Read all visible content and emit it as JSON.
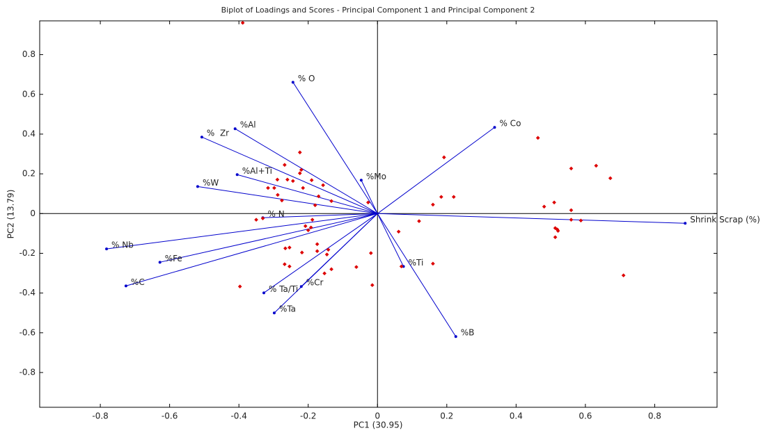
{
  "chart_data": {
    "type": "biplot",
    "title": "Biplot of Loadings and Scores - Principal Component 1 and Principal Component 2",
    "xlabel": "PC1 (30.95)",
    "ylabel": "PC2 (13.79)",
    "xlim": [
      -0.975,
      0.98
    ],
    "ylim": [
      -0.975,
      0.97
    ],
    "xticks": [
      -0.8,
      -0.6,
      -0.4,
      -0.2,
      0,
      0.2,
      0.4,
      0.6,
      0.8
    ],
    "yticks": [
      -0.8,
      -0.6,
      -0.4,
      -0.2,
      0,
      0.2,
      0.4,
      0.6,
      0.8
    ],
    "loadings": {
      "color": "#0000cc",
      "labels": [
        "% O",
        "% Co",
        "%Al",
        "%  Zr",
        "%Al+Ti",
        "%W",
        "%Mo",
        "% N",
        "Shrink Scrap (%)",
        "% Nb",
        "%Fe",
        "%C",
        "%Ti",
        "% Ta/Ti",
        "%Cr",
        "%Ta",
        "%B"
      ],
      "x": [
        -0.244,
        0.338,
        -0.411,
        -0.507,
        -0.405,
        -0.519,
        -0.047,
        -0.331,
        0.888,
        -0.782,
        -0.628,
        -0.726,
        0.075,
        -0.328,
        -0.22,
        -0.298,
        0.226
      ],
      "y": [
        0.661,
        0.434,
        0.427,
        0.385,
        0.196,
        0.136,
        0.168,
        -0.021,
        -0.049,
        -0.178,
        -0.245,
        -0.364,
        -0.266,
        -0.399,
        -0.367,
        -0.5,
        -0.619
      ]
    },
    "scores": {
      "color": "#dd0000",
      "x": [
        -0.389,
        -0.224,
        -0.22,
        -0.224,
        -0.268,
        -0.26,
        -0.289,
        -0.298,
        -0.244,
        -0.19,
        -0.215,
        -0.157,
        -0.17,
        -0.133,
        -0.18,
        -0.288,
        -0.316,
        -0.276,
        -0.027,
        -0.35,
        -0.331,
        -0.188,
        -0.192,
        -0.2,
        -0.208,
        -0.174,
        -0.142,
        -0.146,
        -0.174,
        -0.218,
        -0.266,
        -0.254,
        -0.268,
        -0.254,
        -0.133,
        -0.153,
        -0.061,
        -0.019,
        -0.015,
        -0.397,
        0.061,
        0.12,
        0.16,
        0.069,
        0.192,
        0.16,
        0.184,
        0.22,
        0.463,
        0.559,
        0.631,
        0.672,
        0.481,
        0.51,
        0.559,
        0.559,
        0.587,
        0.513,
        0.519,
        0.521,
        0.513,
        0.71
      ],
      "y": [
        0.96,
        0.308,
        0.22,
        0.203,
        0.245,
        0.171,
        0.171,
        0.129,
        0.164,
        0.168,
        0.129,
        0.143,
        0.087,
        0.063,
        0.042,
        0.094,
        0.129,
        0.066,
        0.056,
        -0.031,
        -0.024,
        -0.031,
        -0.07,
        -0.084,
        -0.063,
        -0.154,
        -0.182,
        -0.206,
        -0.189,
        -0.196,
        -0.175,
        -0.171,
        -0.255,
        -0.266,
        -0.28,
        -0.301,
        -0.269,
        -0.199,
        -0.36,
        -0.367,
        -0.091,
        -0.038,
        -0.252,
        -0.266,
        0.283,
        0.045,
        0.084,
        0.084,
        0.381,
        0.227,
        0.241,
        0.178,
        0.035,
        0.056,
        0.017,
        -0.031,
        -0.035,
        -0.073,
        -0.08,
        -0.087,
        -0.119,
        -0.311
      ]
    }
  }
}
